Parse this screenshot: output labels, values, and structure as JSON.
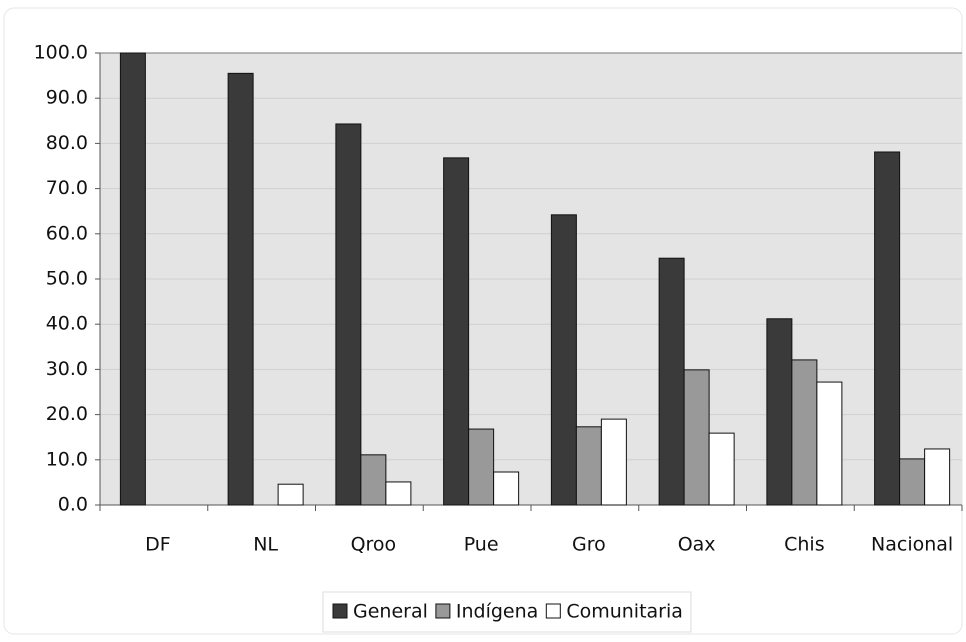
{
  "chart_data": {
    "type": "bar",
    "categories": [
      "DF",
      "NL",
      "Qroo",
      "Pue",
      "Gro",
      "Oax",
      "Chis",
      "Nacional"
    ],
    "series": [
      {
        "name": "General",
        "color": "#3a3a3a",
        "values": [
          100,
          95.5,
          84.3,
          76.8,
          64.2,
          54.6,
          41.2,
          78.1
        ]
      },
      {
        "name": "Indígena",
        "color": "#999999",
        "values": [
          null,
          null,
          11.1,
          16.8,
          17.3,
          29.9,
          32.1,
          10.2
        ]
      },
      {
        "name": "Comunitaria",
        "color": "#ffffff",
        "values": [
          null,
          4.6,
          5.1,
          7.3,
          19.0,
          15.9,
          27.2,
          12.4
        ]
      }
    ],
    "ylim": [
      0,
      100
    ],
    "yticks": [
      {
        "value": 0,
        "label": "0.0"
      },
      {
        "value": 10,
        "label": "10.0"
      },
      {
        "value": 20,
        "label": "20.0"
      },
      {
        "value": 30,
        "label": "30.0"
      },
      {
        "value": 40,
        "label": "40.0"
      },
      {
        "value": 50,
        "label": "50.0"
      },
      {
        "value": 60,
        "label": "60.0"
      },
      {
        "value": 70,
        "label": "70.0"
      },
      {
        "value": 80,
        "label": "80.0"
      },
      {
        "value": 90,
        "label": "90.0"
      },
      {
        "value": 100,
        "label": "100.0"
      }
    ],
    "grid": true,
    "legend": "bottom"
  }
}
